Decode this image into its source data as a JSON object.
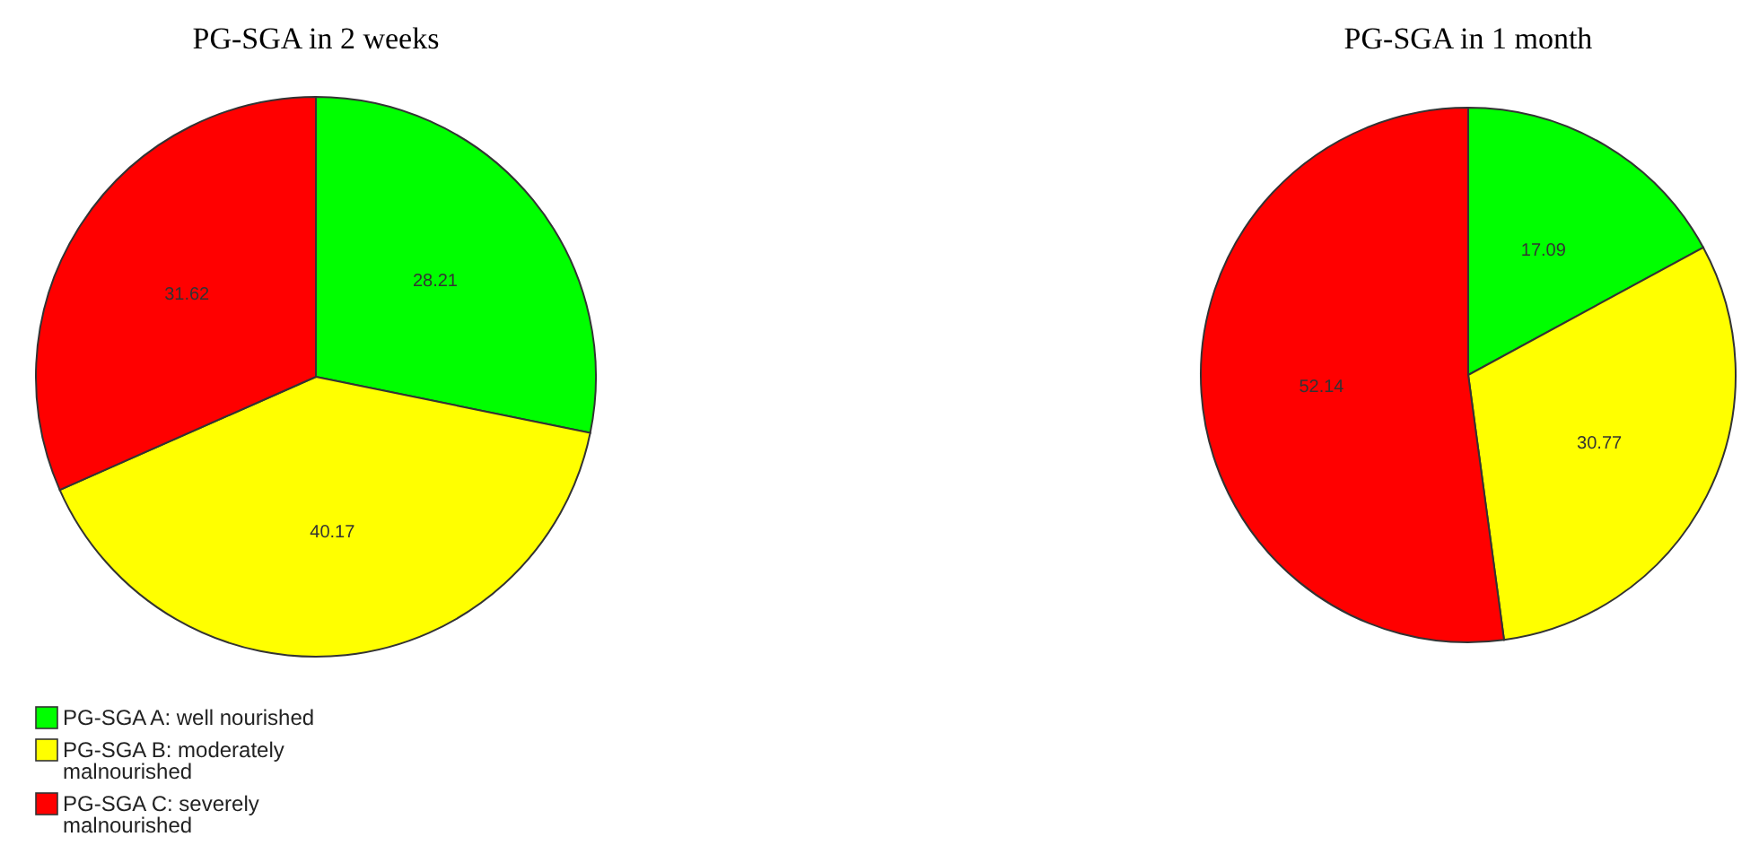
{
  "chart_data": [
    {
      "type": "pie",
      "title": "PG-SGA in 2 weeks",
      "categories": [
        "PG-SGA A: well nourished",
        "PG-SGA B: moderately malnourished",
        "PG-SGA C: severely malnourished"
      ],
      "values": [
        28.21,
        40.17,
        31.62
      ],
      "colors": [
        "#00ff00",
        "#ffff00",
        "#ff0000"
      ],
      "data_labels": true,
      "legend": "bottom left"
    },
    {
      "type": "pie",
      "title": "PG-SGA in 1 month",
      "categories": [
        null,
        null,
        null
      ],
      "values": [
        17.09,
        30.77,
        52.14
      ],
      "colors": [
        "#00ff00",
        "#ffff00",
        "#ff0000"
      ],
      "data_labels": true,
      "legend": false
    }
  ]
}
